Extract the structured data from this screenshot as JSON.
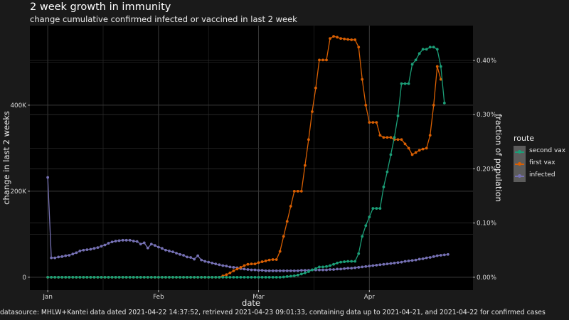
{
  "title": "2 week growth in immunity",
  "subtitle": "change cumulative confirmed infected or vaccined in last 2 week",
  "caption": "datasource: MHLW+Kantei data dated 2021-04-22 14:37:52, retrieved 2021-04-23 09:01:33, containing data up to 2021-04-21, and 2021-04-22 for confirmed cases",
  "colors": {
    "second_vax": "#1b9e77",
    "first_vax": "#d95f02",
    "infected": "#7570b3",
    "background": "#1a1a1a",
    "panel": "#000000",
    "grid": "#3a3a3a"
  },
  "legend": {
    "title": "route",
    "items": [
      {
        "label": "second vax",
        "color": "#1b9e77"
      },
      {
        "label": "first vax",
        "color": "#d95f02"
      },
      {
        "label": "infected",
        "color": "#7570b3"
      }
    ]
  },
  "chart_data": {
    "type": "line",
    "title": "2 week growth in immunity",
    "subtitle": "change cumulative confirmed infected or vaccined in last 2 week",
    "xlabel": "date",
    "ylabel": "change in last 2 weeks",
    "y2label": "fraction of population",
    "x_tick_labels": [
      "Jan",
      "Feb",
      "Mar",
      "Apr"
    ],
    "x_tick_dates": [
      "2021-01-01",
      "2021-02-01",
      "2021-03-01",
      "2021-04-01"
    ],
    "xlim": [
      "2020-12-27",
      "2021-04-30"
    ],
    "y_tick_labels": [
      "0",
      "200K",
      "400K"
    ],
    "y_tick_values": [
      0,
      200000,
      400000
    ],
    "ylim": [
      -30000,
      585000
    ],
    "y2_tick_labels": [
      "0.00%",
      "0.10%",
      "0.20%",
      "0.30%",
      "0.40%"
    ],
    "y2_tick_values": [
      0,
      0.001,
      0.002,
      0.003,
      0.004
    ],
    "y2_scale_population": 126000000,
    "grid": true,
    "legend_position": "right",
    "series": [
      {
        "name": "second vax",
        "color": "#1b9e77",
        "start": "2021-01-01",
        "values": [
          0,
          0,
          0,
          0,
          0,
          0,
          0,
          0,
          0,
          0,
          0,
          0,
          0,
          0,
          0,
          0,
          0,
          0,
          0,
          0,
          0,
          0,
          0,
          0,
          0,
          0,
          0,
          0,
          0,
          0,
          0,
          0,
          0,
          0,
          0,
          0,
          0,
          0,
          0,
          0,
          0,
          0,
          0,
          0,
          0,
          0,
          0,
          0,
          0,
          0,
          0,
          0,
          0,
          0,
          0,
          0,
          0,
          0,
          0,
          0,
          0,
          0,
          0,
          0,
          0,
          0,
          500,
          1500,
          2500,
          3500,
          5000,
          7500,
          10000,
          13000,
          17000,
          20000,
          24000,
          24000,
          25000,
          27000,
          30000,
          33000,
          35000,
          36000,
          37000,
          37000,
          37000,
          55000,
          95000,
          120000,
          140000,
          160000,
          160000,
          160000,
          210000,
          245000,
          285000,
          325000,
          375000,
          450000,
          450000,
          450000,
          495000,
          505000,
          520000,
          530000,
          530000,
          535000,
          535000,
          530000,
          490000,
          405000
        ]
      },
      {
        "name": "first vax",
        "color": "#d95f02",
        "start": "2021-01-01",
        "values": [
          0,
          0,
          0,
          0,
          0,
          0,
          0,
          0,
          0,
          0,
          0,
          0,
          0,
          0,
          0,
          0,
          0,
          0,
          0,
          0,
          0,
          0,
          0,
          0,
          0,
          0,
          0,
          0,
          0,
          0,
          0,
          0,
          0,
          0,
          0,
          0,
          0,
          0,
          0,
          0,
          0,
          0,
          0,
          0,
          0,
          0,
          0,
          0,
          0,
          3000,
          6000,
          10000,
          15000,
          19000,
          23000,
          27000,
          30000,
          31000,
          31000,
          34000,
          36000,
          38000,
          40000,
          41000,
          41000,
          60000,
          95000,
          130000,
          165000,
          200000,
          200000,
          200000,
          260000,
          320000,
          385000,
          440000,
          505000,
          505000,
          505000,
          555000,
          560000,
          558000,
          555000,
          554000,
          553000,
          552000,
          552000,
          535000,
          460000,
          400000,
          360000,
          360000,
          360000,
          330000,
          325000,
          325000,
          325000,
          320000,
          320000,
          320000,
          310000,
          300000,
          285000,
          290000,
          295000,
          298000,
          300000,
          330000,
          400000,
          490000,
          460000
        ]
      },
      {
        "name": "infected",
        "color": "#7570b3",
        "start": "2021-01-01",
        "values": [
          232000,
          45000,
          45000,
          47000,
          48000,
          50000,
          51000,
          54000,
          57000,
          61000,
          63000,
          64000,
          65000,
          67000,
          69000,
          72000,
          75000,
          79000,
          82000,
          84000,
          85000,
          86000,
          86000,
          86000,
          84000,
          83000,
          77000,
          80000,
          68000,
          77000,
          74000,
          70000,
          67000,
          63000,
          61000,
          59000,
          56000,
          53000,
          51000,
          47000,
          46000,
          42000,
          50000,
          40000,
          37000,
          35000,
          33000,
          31000,
          29000,
          27000,
          26000,
          24000,
          23000,
          22000,
          20000,
          19000,
          18000,
          17000,
          17000,
          16000,
          16000,
          15000,
          15000,
          15000,
          15000,
          15000,
          15000,
          15000,
          15000,
          15000,
          15000,
          16000,
          16000,
          16000,
          17000,
          17000,
          17000,
          17000,
          17000,
          18000,
          18000,
          19000,
          19000,
          20000,
          21000,
          21000,
          22000,
          23000,
          24000,
          25000,
          26000,
          27000,
          28000,
          29000,
          30000,
          31000,
          32000,
          33000,
          34000,
          35000,
          37000,
          38000,
          39000,
          40000,
          42000,
          43000,
          45000,
          46000,
          48000,
          50000,
          51000,
          52000,
          53000
        ]
      }
    ]
  }
}
